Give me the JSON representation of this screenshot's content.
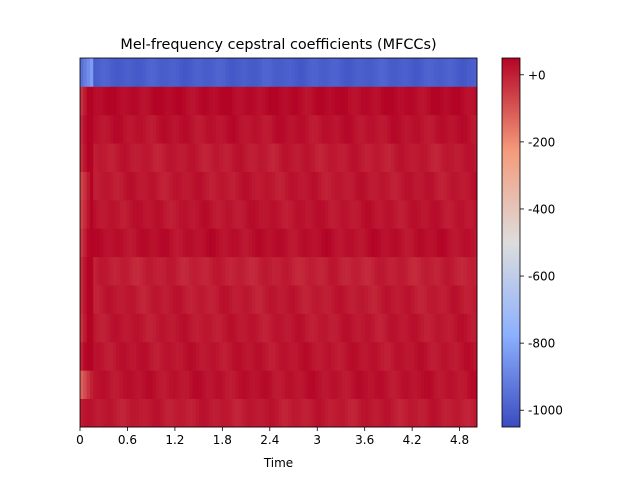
{
  "chart_data": {
    "type": "heatmap",
    "title": "Mel-frequency cepstral coefficients (MFCCs)",
    "xlabel": "Time",
    "ylabel": "",
    "x_ticks": [
      "0",
      "0.6",
      "1.2",
      "1.8",
      "2.4",
      "3",
      "3.6",
      "4.2",
      "4.8"
    ],
    "x_tick_values": [
      0,
      0.6,
      1.2,
      1.8,
      2.4,
      3.0,
      3.6,
      4.2,
      4.8
    ],
    "xlim": [
      0,
      5.02
    ],
    "n_coefficients": 13,
    "colormap": "coolwarm",
    "colorbar": {
      "ticks": [
        "+0",
        "-200",
        "-400",
        "-600",
        "-800",
        "-1000"
      ],
      "tick_values": [
        0,
        -200,
        -400,
        -600,
        -800,
        -1000
      ],
      "range": [
        -1050,
        50
      ]
    },
    "coefficient_levels": [
      10,
      25,
      20,
      15,
      10,
      0,
      30,
      20,
      15,
      10,
      25,
      40,
      -1000
    ],
    "onset_levels": {
      "1": -120,
      "2": 0,
      "3": -30,
      "4": -20,
      "5": -20,
      "6": -40,
      "7": -60,
      "8": -70,
      "9": -20,
      "10": -10,
      "11": -30,
      "12": -950
    },
    "grid": false
  }
}
